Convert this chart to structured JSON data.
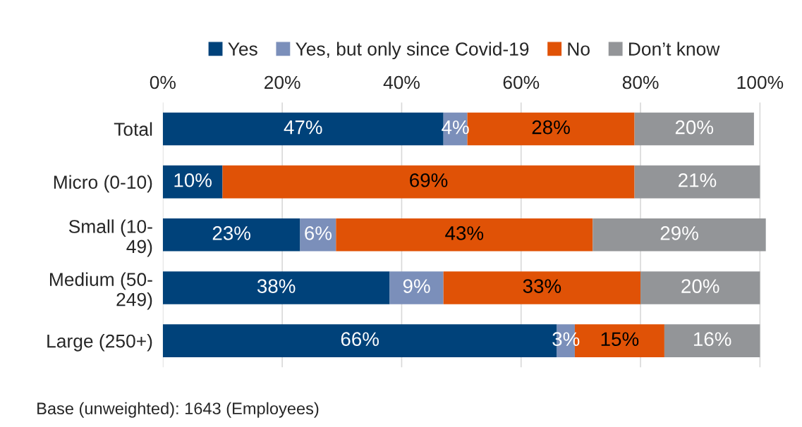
{
  "chart_data": {
    "type": "bar",
    "orientation": "horizontal",
    "stacked": true,
    "categories": [
      "Total",
      "Micro (0-10)",
      "Small (10-\n49)",
      "Medium (50-\n249)",
      "Large (250+)"
    ],
    "series": [
      {
        "name": "Yes",
        "color": "#00427a",
        "values": [
          47,
          10,
          23,
          38,
          66
        ],
        "value_labels": [
          "47%",
          "10%",
          "23%",
          "38%",
          "66%"
        ]
      },
      {
        "name": "Yes, but only since Covid-19",
        "color": "#7b8fba",
        "values": [
          4,
          null,
          6,
          9,
          3
        ],
        "value_labels": [
          "4%",
          null,
          "6%",
          "9%",
          "3%"
        ]
      },
      {
        "name": "No",
        "color": "#e05206",
        "values": [
          28,
          69,
          43,
          33,
          15
        ],
        "value_labels": [
          "28%",
          "69%",
          "43%",
          "33%",
          "15%"
        ]
      },
      {
        "name": "Don’t know",
        "color": "#939598",
        "values": [
          20,
          21,
          29,
          20,
          16
        ],
        "value_labels": [
          "20%",
          "21%",
          "29%",
          "20%",
          "16%"
        ]
      }
    ],
    "xlim": [
      0,
      101
    ],
    "xticks": [
      {
        "value": 0,
        "label": "0%"
      },
      {
        "value": 20,
        "label": "20%"
      },
      {
        "value": 40,
        "label": "40%"
      },
      {
        "value": 60,
        "label": "60%"
      },
      {
        "value": 80,
        "label": "80%"
      },
      {
        "value": 100,
        "label": "100%"
      }
    ],
    "grid": "x",
    "legend": "top",
    "annotations": [
      "Base (unweighted): 1643 (Employees)"
    ]
  }
}
